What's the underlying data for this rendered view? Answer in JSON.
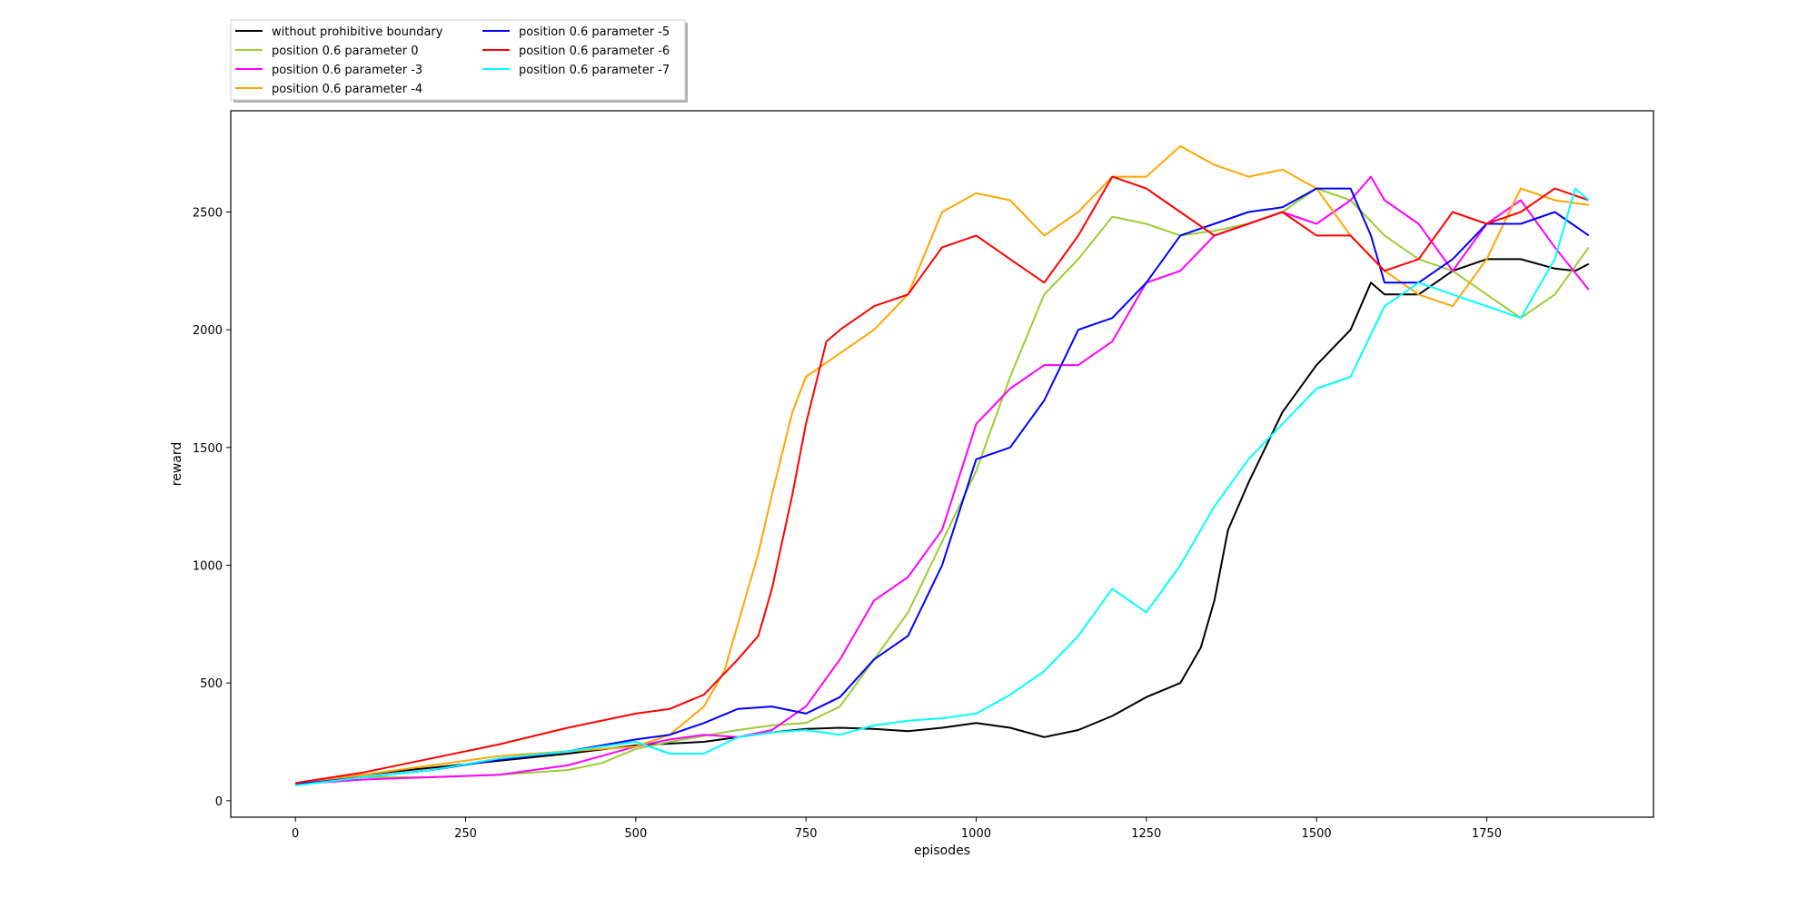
{
  "chart_data": {
    "type": "line",
    "title": "",
    "xlabel": "episodes",
    "ylabel": "reward",
    "xlim": [
      -95,
      1995
    ],
    "ylim": [
      -70,
      2930
    ],
    "xticks": [
      0,
      250,
      500,
      750,
      1000,
      1250,
      1500,
      1750
    ],
    "yticks": [
      0,
      500,
      1000,
      1500,
      2000,
      2500
    ],
    "grid": false,
    "legend_position": "above-top-left",
    "series": [
      {
        "name": "without prohibitive boundary",
        "color": "#000000",
        "x": [
          0,
          100,
          200,
          300,
          400,
          500,
          600,
          700,
          750,
          800,
          850,
          900,
          950,
          1000,
          1050,
          1100,
          1150,
          1200,
          1250,
          1300,
          1330,
          1350,
          1370,
          1400,
          1450,
          1500,
          1550,
          1580,
          1600,
          1650,
          1700,
          1750,
          1800,
          1850,
          1880,
          1900
        ],
        "y": [
          70,
          110,
          140,
          170,
          200,
          235,
          250,
          290,
          305,
          310,
          305,
          295,
          310,
          330,
          310,
          270,
          300,
          360,
          440,
          500,
          650,
          850,
          1150,
          1350,
          1650,
          1850,
          2000,
          2200,
          2150,
          2150,
          2250,
          2300,
          2300,
          2260,
          2250,
          2280
        ]
      },
      {
        "name": "position 0.6 parameter 0",
        "color": "#9ACD32",
        "x": [
          0,
          100,
          200,
          300,
          400,
          450,
          500,
          550,
          600,
          650,
          700,
          750,
          800,
          850,
          900,
          950,
          1000,
          1050,
          1100,
          1150,
          1200,
          1250,
          1300,
          1350,
          1400,
          1450,
          1500,
          1550,
          1600,
          1650,
          1700,
          1750,
          1800,
          1850,
          1900
        ],
        "y": [
          70,
          100,
          100,
          110,
          130,
          160,
          220,
          250,
          275,
          300,
          320,
          330,
          400,
          600,
          800,
          1100,
          1400,
          1800,
          2150,
          2300,
          2480,
          2450,
          2400,
          2420,
          2450,
          2500,
          2600,
          2550,
          2400,
          2300,
          2250,
          2150,
          2050,
          2150,
          2350
        ]
      },
      {
        "name": "position 0.6 parameter -3",
        "color": "#FF00FF",
        "x": [
          0,
          100,
          200,
          300,
          400,
          500,
          550,
          600,
          650,
          700,
          750,
          800,
          850,
          900,
          950,
          1000,
          1050,
          1100,
          1150,
          1200,
          1250,
          1300,
          1350,
          1400,
          1450,
          1500,
          1550,
          1580,
          1600,
          1650,
          1700,
          1750,
          1800,
          1850,
          1900
        ],
        "y": [
          70,
          90,
          100,
          110,
          150,
          230,
          260,
          280,
          270,
          300,
          400,
          600,
          850,
          950,
          1150,
          1600,
          1750,
          1850,
          1850,
          1950,
          2200,
          2250,
          2400,
          2450,
          2500,
          2450,
          2550,
          2650,
          2550,
          2450,
          2250,
          2450,
          2550,
          2350,
          2170
        ]
      },
      {
        "name": "position 0.6 parameter -4",
        "color": "#FFA500",
        "x": [
          0,
          100,
          200,
          300,
          400,
          500,
          550,
          600,
          630,
          650,
          680,
          700,
          730,
          750,
          800,
          850,
          900,
          950,
          1000,
          1050,
          1100,
          1150,
          1200,
          1250,
          1300,
          1350,
          1400,
          1450,
          1500,
          1550,
          1600,
          1650,
          1700,
          1750,
          1800,
          1850,
          1900
        ],
        "y": [
          70,
          110,
          150,
          190,
          210,
          230,
          280,
          400,
          550,
          750,
          1050,
          1300,
          1650,
          1800,
          1900,
          2000,
          2150,
          2500,
          2580,
          2550,
          2400,
          2500,
          2650,
          2650,
          2780,
          2700,
          2650,
          2680,
          2600,
          2400,
          2250,
          2150,
          2100,
          2300,
          2600,
          2550,
          2530
        ]
      },
      {
        "name": "position 0.6 parameter -5",
        "color": "#0000FF",
        "x": [
          0,
          100,
          200,
          300,
          400,
          500,
          550,
          600,
          650,
          700,
          750,
          800,
          850,
          900,
          950,
          1000,
          1050,
          1100,
          1150,
          1200,
          1250,
          1300,
          1350,
          1400,
          1450,
          1500,
          1550,
          1580,
          1600,
          1650,
          1700,
          1750,
          1800,
          1850,
          1900
        ],
        "y": [
          70,
          100,
          130,
          175,
          210,
          260,
          280,
          330,
          390,
          400,
          370,
          440,
          600,
          700,
          1000,
          1450,
          1500,
          1700,
          2000,
          2050,
          2200,
          2400,
          2450,
          2500,
          2520,
          2600,
          2600,
          2400,
          2200,
          2200,
          2300,
          2450,
          2450,
          2500,
          2400
        ]
      },
      {
        "name": "position 0.6 parameter -6",
        "color": "#FF0000",
        "x": [
          0,
          100,
          200,
          300,
          400,
          500,
          550,
          600,
          650,
          680,
          700,
          730,
          750,
          780,
          800,
          850,
          900,
          950,
          1000,
          1050,
          1100,
          1150,
          1200,
          1250,
          1300,
          1350,
          1400,
          1450,
          1500,
          1550,
          1600,
          1650,
          1700,
          1750,
          1800,
          1850,
          1900
        ],
        "y": [
          75,
          120,
          180,
          240,
          310,
          370,
          390,
          450,
          600,
          700,
          900,
          1300,
          1600,
          1950,
          2000,
          2100,
          2150,
          2350,
          2400,
          2300,
          2200,
          2400,
          2650,
          2600,
          2500,
          2400,
          2450,
          2500,
          2400,
          2400,
          2250,
          2300,
          2500,
          2450,
          2500,
          2600,
          2550
        ]
      },
      {
        "name": "position 0.6 parameter -7",
        "color": "#00FFFF",
        "x": [
          0,
          100,
          200,
          300,
          400,
          500,
          550,
          600,
          650,
          700,
          750,
          800,
          850,
          900,
          950,
          1000,
          1050,
          1100,
          1150,
          1200,
          1250,
          1300,
          1350,
          1400,
          1450,
          1500,
          1550,
          1600,
          1650,
          1700,
          1750,
          1800,
          1850,
          1880,
          1900
        ],
        "y": [
          65,
          100,
          130,
          180,
          210,
          250,
          200,
          200,
          270,
          290,
          300,
          280,
          320,
          340,
          350,
          370,
          450,
          550,
          700,
          900,
          800,
          1000,
          1250,
          1450,
          1600,
          1750,
          1800,
          2100,
          2200,
          2150,
          2100,
          2050,
          2300,
          2600,
          2550
        ]
      }
    ]
  }
}
